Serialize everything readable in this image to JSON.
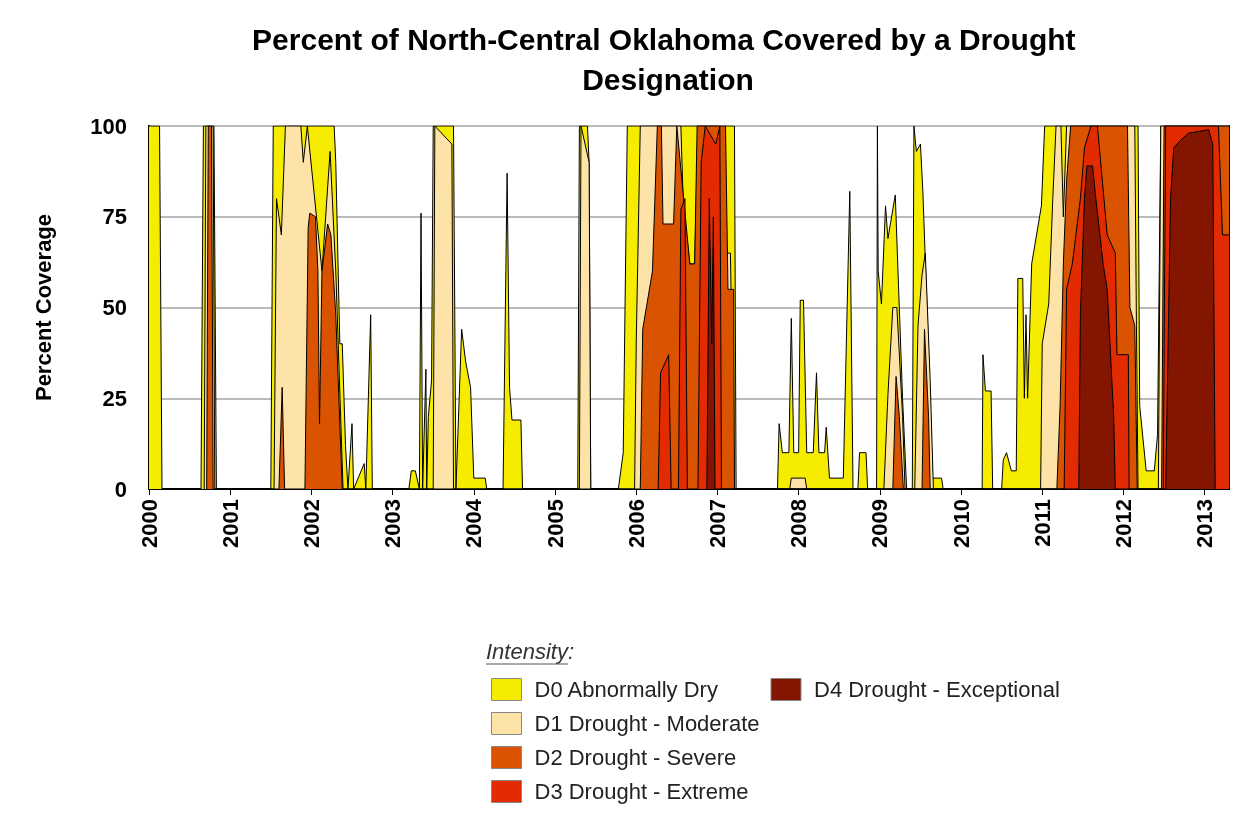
{
  "chart_data": {
    "type": "area",
    "title": "Percent of North-Central Oklahoma Covered by a Drought Designation",
    "ylabel": "Percent Coverage",
    "legend_title": "Intensity:",
    "legend": "bottom",
    "grid": "y",
    "marker": "none",
    "xlim": [
      2000,
      2013.3
    ],
    "xticks": [
      2000,
      2001,
      2002,
      2003,
      2004,
      2005,
      2006,
      2007,
      2008,
      2009,
      2010,
      2011,
      2012,
      2013
    ],
    "ylim": [
      0,
      100
    ],
    "yticks": [
      0,
      25,
      50,
      75,
      100
    ],
    "series": [
      {
        "name": "D0 Abnormally Dry",
        "color": "#f5ec00",
        "x": [
          2000.0,
          2000.13,
          2000.16,
          2000.64,
          2000.67,
          2000.8,
          2000.83,
          2001.5,
          2001.53,
          2002.28,
          2002.3,
          2002.35,
          2002.38,
          2002.42,
          2002.45,
          2002.5,
          2002.52,
          2002.65,
          2002.67,
          2002.73,
          2002.75,
          2003.2,
          2003.23,
          2003.28,
          2003.33,
          2003.35,
          2003.37,
          2003.41,
          2003.42,
          2003.44,
          2003.48,
          2003.5,
          2003.75,
          2003.78,
          2003.85,
          2003.9,
          2003.96,
          2004.0,
          2004.14,
          2004.16,
          2004.36,
          2004.41,
          2004.44,
          2004.47,
          2004.58,
          2004.6,
          2005.28,
          2005.3,
          2005.4,
          2005.42,
          2005.44,
          2005.78,
          2005.84,
          2005.89,
          2007.21,
          2007.23,
          2007.74,
          2007.76,
          2007.8,
          2007.88,
          2007.91,
          2007.94,
          2008.0,
          2008.02,
          2008.06,
          2008.1,
          2008.18,
          2008.22,
          2008.25,
          2008.32,
          2008.34,
          2008.38,
          2008.55,
          2008.63,
          2008.67,
          2008.73,
          2008.75,
          2008.83,
          2008.85,
          2008.96,
          2008.97,
          2008.98,
          2009.02,
          2009.07,
          2009.1,
          2009.19,
          2009.23,
          2009.28,
          2009.33,
          2009.4,
          2009.42,
          2009.45,
          2009.5,
          2009.53,
          2009.6,
          2009.65,
          2009.76,
          2009.78,
          2010.26,
          2010.27,
          2010.3,
          2010.37,
          2010.39,
          2010.5,
          2010.52,
          2010.56,
          2010.62,
          2010.68,
          2010.7,
          2010.76,
          2010.78,
          2010.8,
          2010.82,
          2010.87,
          2010.99,
          2011.03,
          2012.18,
          2012.2,
          2012.28,
          2012.38,
          2012.42,
          2012.46,
          2013.3
        ],
        "values": [
          100,
          100,
          0,
          0,
          100,
          100,
          0,
          0,
          100,
          100,
          90,
          40,
          40,
          12,
          0,
          18,
          0,
          7,
          0,
          48,
          0,
          0,
          5,
          5,
          0,
          76,
          0,
          33,
          0,
          20,
          30,
          100,
          100,
          0,
          44,
          35,
          28,
          3,
          3,
          0,
          0,
          87,
          28,
          19,
          19,
          0,
          0,
          100,
          100,
          90,
          0,
          0,
          10,
          100,
          100,
          0,
          0,
          18,
          10,
          10,
          47,
          10,
          10,
          52,
          52,
          10,
          10,
          32,
          10,
          10,
          17,
          3,
          3,
          82,
          0,
          0,
          10,
          10,
          0,
          0,
          100,
          60,
          51,
          78,
          69,
          81,
          56,
          25,
          0,
          0,
          100,
          93,
          95,
          82,
          38,
          3,
          3,
          0,
          0,
          37,
          27,
          27,
          0,
          0,
          8,
          10,
          5,
          5,
          58,
          58,
          25,
          48,
          25,
          62,
          78,
          100,
          100,
          23,
          5,
          5,
          15,
          100,
          100
        ]
      },
      {
        "name": "D1 Drought - Moderate",
        "color": "#fde3a7",
        "x": [
          2000.68,
          2000.7,
          2000.79,
          2000.81,
          2001.54,
          2001.57,
          2001.63,
          2001.68,
          2001.87,
          2001.9,
          2001.95,
          2002.13,
          2002.23,
          2002.3,
          2002.36,
          2002.39,
          2003.5,
          2003.52,
          2003.73,
          2003.75,
          2005.3,
          2005.32,
          2005.42,
          2005.44,
          2005.98,
          2006.0,
          2006.05,
          2006.55,
          2006.58,
          2006.66,
          2006.72,
          2006.76,
          2007.02,
          2007.05,
          2007.12,
          2007.16,
          2007.21,
          2007.89,
          2007.91,
          2008.08,
          2008.1,
          2009.05,
          2009.1,
          2009.16,
          2009.21,
          2009.28,
          2009.31,
          2009.43,
          2009.47,
          2009.52,
          2009.56,
          2009.62,
          2009.66,
          2010.98,
          2011.0,
          2011.08,
          2011.13,
          2011.17,
          2011.23,
          2011.26,
          2011.3,
          2012.14,
          2012.16,
          2012.18,
          2012.43,
          2012.46,
          2013.3
        ],
        "values": [
          0,
          100,
          100,
          0,
          0,
          80,
          70,
          100,
          100,
          90,
          100,
          60,
          93,
          60,
          20,
          0,
          0,
          100,
          95,
          0,
          0,
          100,
          90,
          0,
          0,
          40,
          100,
          100,
          78,
          62,
          62,
          100,
          100,
          83,
          65,
          65,
          0,
          0,
          3,
          3,
          0,
          0,
          26,
          50,
          50,
          20,
          0,
          0,
          45,
          59,
          65,
          30,
          0,
          0,
          40,
          51,
          80,
          100,
          100,
          75,
          100,
          100,
          45,
          0,
          0,
          100,
          100
        ]
      },
      {
        "name": "D2 Drought - Severe",
        "color": "#d95300",
        "x": [
          2000.71,
          2000.73,
          2000.77,
          2000.79,
          2001.6,
          2001.64,
          2001.67,
          2001.92,
          2001.96,
          2001.98,
          2002.05,
          2002.08,
          2002.1,
          2002.13,
          2002.2,
          2002.24,
          2002.3,
          2002.38,
          2006.05,
          2006.08,
          2006.2,
          2006.26,
          2006.31,
          2006.33,
          2006.46,
          2006.5,
          2006.66,
          2006.72,
          2006.75,
          2007.1,
          2007.13,
          2007.2,
          2007.21,
          2009.16,
          2009.2,
          2009.24,
          2009.29,
          2009.52,
          2009.55,
          2009.6,
          2009.62,
          2011.18,
          2011.22,
          2011.26,
          2011.3,
          2011.35,
          2012.05,
          2012.08,
          2012.14,
          2012.17,
          2012.47,
          2012.5,
          2013.3
        ],
        "values": [
          0,
          100,
          100,
          0,
          0,
          28,
          0,
          0,
          72,
          76,
          75,
          60,
          18,
          60,
          73,
          70,
          48,
          0,
          0,
          44,
          60,
          100,
          100,
          73,
          73,
          100,
          62,
          62,
          100,
          100,
          55,
          55,
          0,
          0,
          31,
          20,
          0,
          0,
          44,
          20,
          0,
          0,
          23,
          62,
          85,
          100,
          100,
          50,
          45,
          0,
          0,
          100,
          100
        ]
      },
      {
        "name": "D3 Drought - Extreme",
        "color": "#e22b00",
        "x": [
          2006.27,
          2006.3,
          2006.4,
          2006.43,
          2006.52,
          2006.55,
          2006.6,
          2006.63,
          2006.76,
          2006.8,
          2006.85,
          2006.98,
          2007.03,
          2007.05,
          2011.27,
          2011.3,
          2011.37,
          2011.47,
          2011.52,
          2011.6,
          2011.68,
          2011.72,
          2011.8,
          2011.9,
          2011.92,
          2012.06,
          2012.07,
          2012.49,
          2012.52,
          2013.17,
          2013.22,
          2013.3
        ],
        "values": [
          0,
          32,
          37,
          0,
          0,
          77,
          80,
          0,
          0,
          90,
          100,
          95,
          100,
          0,
          0,
          55,
          62,
          80,
          94,
          100,
          100,
          90,
          70,
          65,
          37,
          37,
          0,
          0,
          100,
          100,
          70,
          70
        ]
      },
      {
        "name": "D4 Drought - Exceptional",
        "color": "#841500",
        "x": [
          2006.87,
          2006.9,
          2006.93,
          2006.95,
          2006.97,
          2011.45,
          2011.47,
          2011.52,
          2011.55,
          2011.62,
          2011.66,
          2011.75,
          2011.8,
          2011.88,
          2011.9,
          2012.52,
          2012.58,
          2012.62,
          2012.7,
          2012.8,
          2013.05,
          2013.1,
          2013.13
        ],
        "values": [
          0,
          80,
          40,
          75,
          0,
          0,
          48,
          80,
          89,
          89,
          80,
          62,
          55,
          20,
          0,
          0,
          80,
          94,
          96,
          98,
          99,
          95,
          0
        ]
      }
    ]
  }
}
